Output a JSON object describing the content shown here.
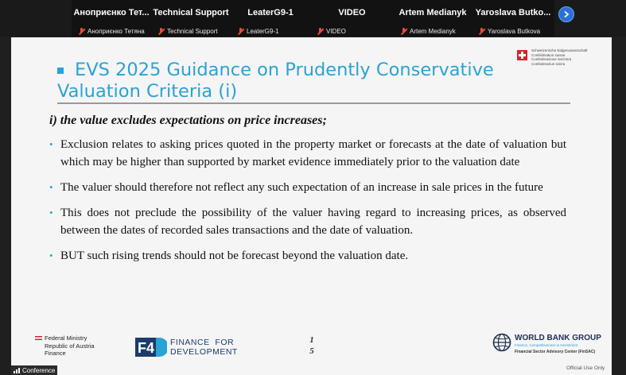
{
  "participants": [
    {
      "name": "Аноприєнко Тет...",
      "label": "Аноприєнко Тетяна"
    },
    {
      "name": "Technical Support",
      "label": "Technical Support"
    },
    {
      "name": "LeaterG9-1",
      "label": "LeaterG9-1"
    },
    {
      "name": "VIDEO",
      "label": "VIDEO"
    },
    {
      "name": "Artem Medianyk",
      "label": "Artem Medianyk"
    },
    {
      "name": "Yaroslava Butko...",
      "label": "Yaroslava Butkova"
    }
  ],
  "icons": {
    "next": "chevron-right-icon",
    "mic": "mic-off-icon",
    "signal": "signal-bars-icon"
  },
  "colors": {
    "accent": "#2aa3d4",
    "muted": "#e74c3c",
    "next_button": "#2d6fd8"
  },
  "slide": {
    "title": "EVS 2025 Guidance on Prudently Conservative Valuation Criteria (i)",
    "swiss_lines": "Schweizerische Eidgenossenschaft\nConfédération suisse\nConfederazione Svizzera\nConfederaziun svizra",
    "subheading": "i) the value excludes expectations on price increases;",
    "bullets": [
      "Exclusion relates to asking prices quoted in the property market or forecasts at the date of valuation but which may be higher than supported by market evidence immediately prior to the valuation date",
      "The valuer should therefore not reflect any such expectation of an increase in sale prices in the future",
      "This does not preclude the possibility of the valuer having regard to increasing prices, as observed between the dates of recorded sales transactions and the date of valuation.",
      "BUT  such rising trends should not be forecast beyond the valuation date."
    ],
    "footer": {
      "bmf": "Federal Ministry\nRepublic of Austria\nFinance",
      "f4d": "FINANCE  FOR\nDEVELOPMENT",
      "page_number": "1\n5",
      "wbg_name": "WORLD BANK GROUP",
      "wbg_sub1": "Finance, Competitiveness & Investment",
      "wbg_sub2": "Financial Sector Advisory Center (FinSAC)"
    }
  },
  "overlay": {
    "conference": "Conference",
    "official": "Official Use Only"
  }
}
